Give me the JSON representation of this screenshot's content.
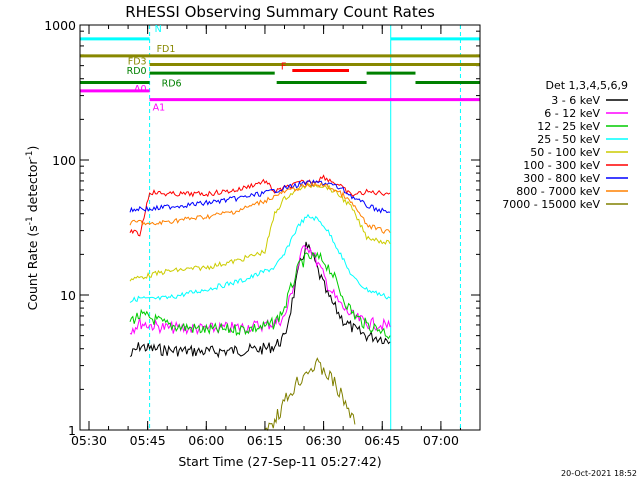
{
  "chart_data": {
    "type": "line",
    "title": "RHESSI Observing Summary Count Rates",
    "xlabel": "Start Time (27-Sep-11 05:27:42)",
    "ylabel_main": "Count Rate (s",
    "ylabel_sup1": "-1",
    "ylabel_mid": " detector",
    "ylabel_sup2": "-1",
    "ylabel_end": ")",
    "timestamp": "20-Oct-2021 18:52",
    "y_scale": "log",
    "ylim": [
      1,
      1000
    ],
    "xlim": [
      "05:27:42",
      "07:10:00"
    ],
    "x_ticks": [
      "05:30",
      "05:45",
      "06:00",
      "06:15",
      "06:30",
      "06:45",
      "07:00"
    ],
    "y_ticks": [
      "1",
      "10",
      "100",
      "1000"
    ],
    "legend": {
      "placement": "right",
      "title": "Det 1,3,4,5,6,9"
    },
    "flags": [
      {
        "label": "N",
        "color": "#00ffff",
        "y": 790,
        "segments": [
          [
            "05:27:42",
            "05:45:30"
          ],
          [
            "06:47:10",
            "07:10:00"
          ]
        ]
      },
      {
        "label": "F",
        "color": "#ff0000",
        "y": 460,
        "segments": [
          [
            "06:22:00",
            "06:36:30"
          ]
        ]
      },
      {
        "label": "FD1",
        "color": "#888800",
        "y": 590,
        "segments": [
          [
            "05:27:42",
            "07:10:00"
          ]
        ]
      },
      {
        "label": "FD3",
        "color": "#888800",
        "y": 510,
        "segments": [
          [
            "05:45:30",
            "07:10:00"
          ]
        ]
      },
      {
        "label": "RD0",
        "color": "#008000",
        "y": 440,
        "segments": [
          [
            "05:45:30",
            "06:17:30"
          ],
          [
            "06:41:00",
            "06:53:30"
          ]
        ]
      },
      {
        "label": "RD6",
        "color": "#008000",
        "y": 375,
        "segments": [
          [
            "05:27:42",
            "05:45:30"
          ],
          [
            "06:18:00",
            "06:41:00"
          ],
          [
            "06:53:30",
            "07:10:00"
          ]
        ]
      },
      {
        "label": "A0",
        "color": "#ff00ff",
        "y": 325,
        "segments": [
          [
            "05:27:42",
            "05:45:30"
          ]
        ]
      },
      {
        "label": "A1",
        "color": "#ff00ff",
        "y": 280,
        "segments": [
          [
            "05:45:30",
            "07:10:00"
          ]
        ]
      }
    ],
    "vlines": [
      {
        "x": "05:45:30",
        "color": "#00ffff",
        "style": "dashed"
      },
      {
        "x": "07:05:00",
        "color": "#00ffff",
        "style": "dashed"
      },
      {
        "x": "06:47:10",
        "color": "#00ffff",
        "style": "solid"
      }
    ],
    "series": [
      {
        "name": "3 - 6 keV",
        "color": "#000000",
        "x": [
          "05:40:30",
          "05:43:00",
          "05:45:30",
          "05:50:00",
          "06:00:00",
          "06:10:00",
          "06:15:00",
          "06:17:30",
          "06:20:00",
          "06:22:00",
          "06:24:00",
          "06:25:30",
          "06:27:00",
          "06:29:00",
          "06:31:00",
          "06:33:00",
          "06:35:00",
          "06:38:00",
          "06:41:00",
          "06:45:00",
          "06:47:00"
        ],
        "y": [
          3.5,
          4.2,
          4.0,
          3.9,
          3.8,
          3.9,
          4.0,
          4.2,
          4.8,
          9,
          17,
          23,
          20,
          14,
          10,
          8,
          6.5,
          5.5,
          5.0,
          4.8,
          4.5
        ]
      },
      {
        "name": "6 - 12 keV",
        "color": "#ff00ff",
        "x": [
          "05:40:30",
          "05:43:00",
          "05:45:30",
          "05:50:00",
          "06:00:00",
          "06:10:00",
          "06:15:00",
          "06:17:30",
          "06:20:00",
          "06:22:00",
          "06:24:00",
          "06:25:30",
          "06:27:00",
          "06:29:00",
          "06:31:00",
          "06:33:00",
          "06:35:00",
          "06:38:00",
          "06:41:00",
          "06:45:00",
          "06:47:00"
        ],
        "y": [
          5.5,
          6.2,
          6.0,
          5.7,
          5.6,
          5.8,
          6.0,
          6.2,
          6.8,
          11,
          19,
          24,
          21,
          16,
          12,
          9.5,
          8,
          6.8,
          6.2,
          6.0,
          5.8
        ]
      },
      {
        "name": "12 - 25 keV",
        "color": "#00cc00",
        "x": [
          "05:40:30",
          "05:43:00",
          "05:45:30",
          "05:50:00",
          "06:00:00",
          "06:10:00",
          "06:15:00",
          "06:17:30",
          "06:20:00",
          "06:22:00",
          "06:24:00",
          "06:26:00",
          "06:28:00",
          "06:30:00",
          "06:32:00",
          "06:34:00",
          "06:36:00",
          "06:38:00",
          "06:41:00",
          "06:45:00",
          "06:47:00"
        ],
        "y": [
          6.5,
          7.0,
          6.8,
          6.0,
          5.5,
          5.6,
          5.8,
          6.2,
          8,
          12,
          17,
          19,
          19,
          18,
          15,
          11,
          8.5,
          7,
          6,
          5.5,
          5.0
        ]
      },
      {
        "name": "25 - 50 keV",
        "color": "#00ffff",
        "x": [
          "05:40:30",
          "05:43:00",
          "05:45:30",
          "05:50:00",
          "06:00:00",
          "06:10:00",
          "06:15:00",
          "06:17:30",
          "06:20:00",
          "06:22:00",
          "06:24:00",
          "06:26:00",
          "06:28:00",
          "06:30:00",
          "06:32:00",
          "06:34:00",
          "06:36:00",
          "06:38:00",
          "06:41:00",
          "06:45:00",
          "06:47:00"
        ],
        "y": [
          9,
          9.5,
          9.3,
          9.5,
          11,
          13,
          15,
          16,
          20,
          27,
          34,
          38,
          37,
          33,
          27,
          21,
          16,
          13,
          11,
          10,
          9.5
        ]
      },
      {
        "name": "50 - 100 keV",
        "color": "#cccc00",
        "x": [
          "05:40:30",
          "05:45:30",
          "05:50:00",
          "06:00:00",
          "06:08:00",
          "06:15:00",
          "06:17:30",
          "06:20:00",
          "06:24:00",
          "06:28:00",
          "06:31:00",
          "06:34:00",
          "06:37:00",
          "06:41:00",
          "06:45:00",
          "06:47:00"
        ],
        "y": [
          13,
          14,
          15,
          16,
          18,
          21,
          40,
          52,
          62,
          66,
          63,
          55,
          45,
          27,
          25,
          24
        ]
      },
      {
        "name": "100 - 300 keV",
        "color": "#ff0000",
        "x": [
          "05:40:30",
          "05:43:00",
          "05:45:30",
          "05:50:00",
          "06:00:00",
          "06:08:00",
          "06:15:00",
          "06:17:30",
          "06:20:00",
          "06:24:00",
          "06:28:00",
          "06:30:00",
          "06:32:00",
          "06:34:00",
          "06:37:00",
          "06:41:00",
          "06:45:00",
          "06:47:00"
        ],
        "y": [
          30,
          28,
          58,
          56,
          56,
          60,
          70,
          58,
          62,
          68,
          70,
          75,
          70,
          65,
          55,
          58,
          57,
          57
        ]
      },
      {
        "name": "300 - 800 keV",
        "color": "#0000ff",
        "x": [
          "05:40:30",
          "05:43:00",
          "05:45:30",
          "05:50:00",
          "06:00:00",
          "06:08:00",
          "06:15:00",
          "06:20:00",
          "06:25:00",
          "06:29:00",
          "06:32:00",
          "06:35:00",
          "06:38:00",
          "06:41:00",
          "06:45:00",
          "06:47:00"
        ],
        "y": [
          42,
          44,
          43,
          45,
          48,
          52,
          57,
          62,
          67,
          68,
          66,
          60,
          52,
          46,
          42,
          41
        ]
      },
      {
        "name": "800 - 7000 keV",
        "color": "#ff8000",
        "x": [
          "05:40:30",
          "05:43:00",
          "05:45:30",
          "05:50:00",
          "06:00:00",
          "06:08:00",
          "06:15:00",
          "06:20:00",
          "06:25:00",
          "06:29:00",
          "06:32:00",
          "06:35:00",
          "06:38:00",
          "06:41:00",
          "06:45:00",
          "06:47:00"
        ],
        "y": [
          34,
          35,
          33,
          35,
          38,
          42,
          50,
          58,
          64,
          66,
          62,
          55,
          45,
          33,
          30,
          29
        ]
      },
      {
        "name": "7000 - 15000 keV",
        "color": "#808000",
        "x": [
          "06:15:00",
          "06:17:30",
          "06:20:00",
          "06:22:00",
          "06:24:00",
          "06:26:00",
          "06:28:00",
          "06:30:00",
          "06:32:00",
          "06:34:00",
          "06:36:00",
          "06:38:00"
        ],
        "y": [
          1.0,
          1.2,
          1.6,
          2.0,
          2.4,
          2.8,
          3.0,
          2.8,
          2.4,
          1.9,
          1.5,
          1.1
        ]
      }
    ]
  }
}
